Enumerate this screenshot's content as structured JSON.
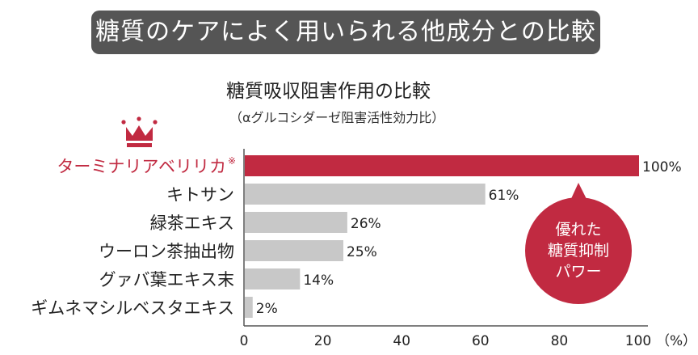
{
  "header": {
    "banner": "糖質のケアによく用いられる他成分との比較"
  },
  "chart_data": {
    "type": "bar",
    "orientation": "horizontal",
    "title": "糖質吸収阻害作用の比較",
    "subtitle": "（αグルコシダーゼ阻害活性効力比）",
    "categories": [
      "ターミナリアベリリカ",
      "キトサン",
      "緑茶エキス",
      "ウーロン茶抽出物",
      "グァバ葉エキス末",
      "ギムネマシルベスタエキス"
    ],
    "category_note": "※",
    "values": [
      100,
      61,
      26,
      25,
      14,
      2
    ],
    "value_labels": [
      "100%",
      "61%",
      "26%",
      "25%",
      "14%",
      "2%"
    ],
    "xlim": [
      0,
      100
    ],
    "xticks": [
      "0",
      "20",
      "40",
      "60",
      "80",
      "100"
    ],
    "xunit": "（%）",
    "highlight_index": 0,
    "callout": [
      "優れた",
      "糖質抑制",
      "パワー"
    ],
    "colors": {
      "highlight": "#c12a41",
      "bar": "#c8c8c8",
      "axis": "#555555",
      "text": "#222222"
    },
    "crown_icon": "crown-icon",
    "grid": false
  }
}
